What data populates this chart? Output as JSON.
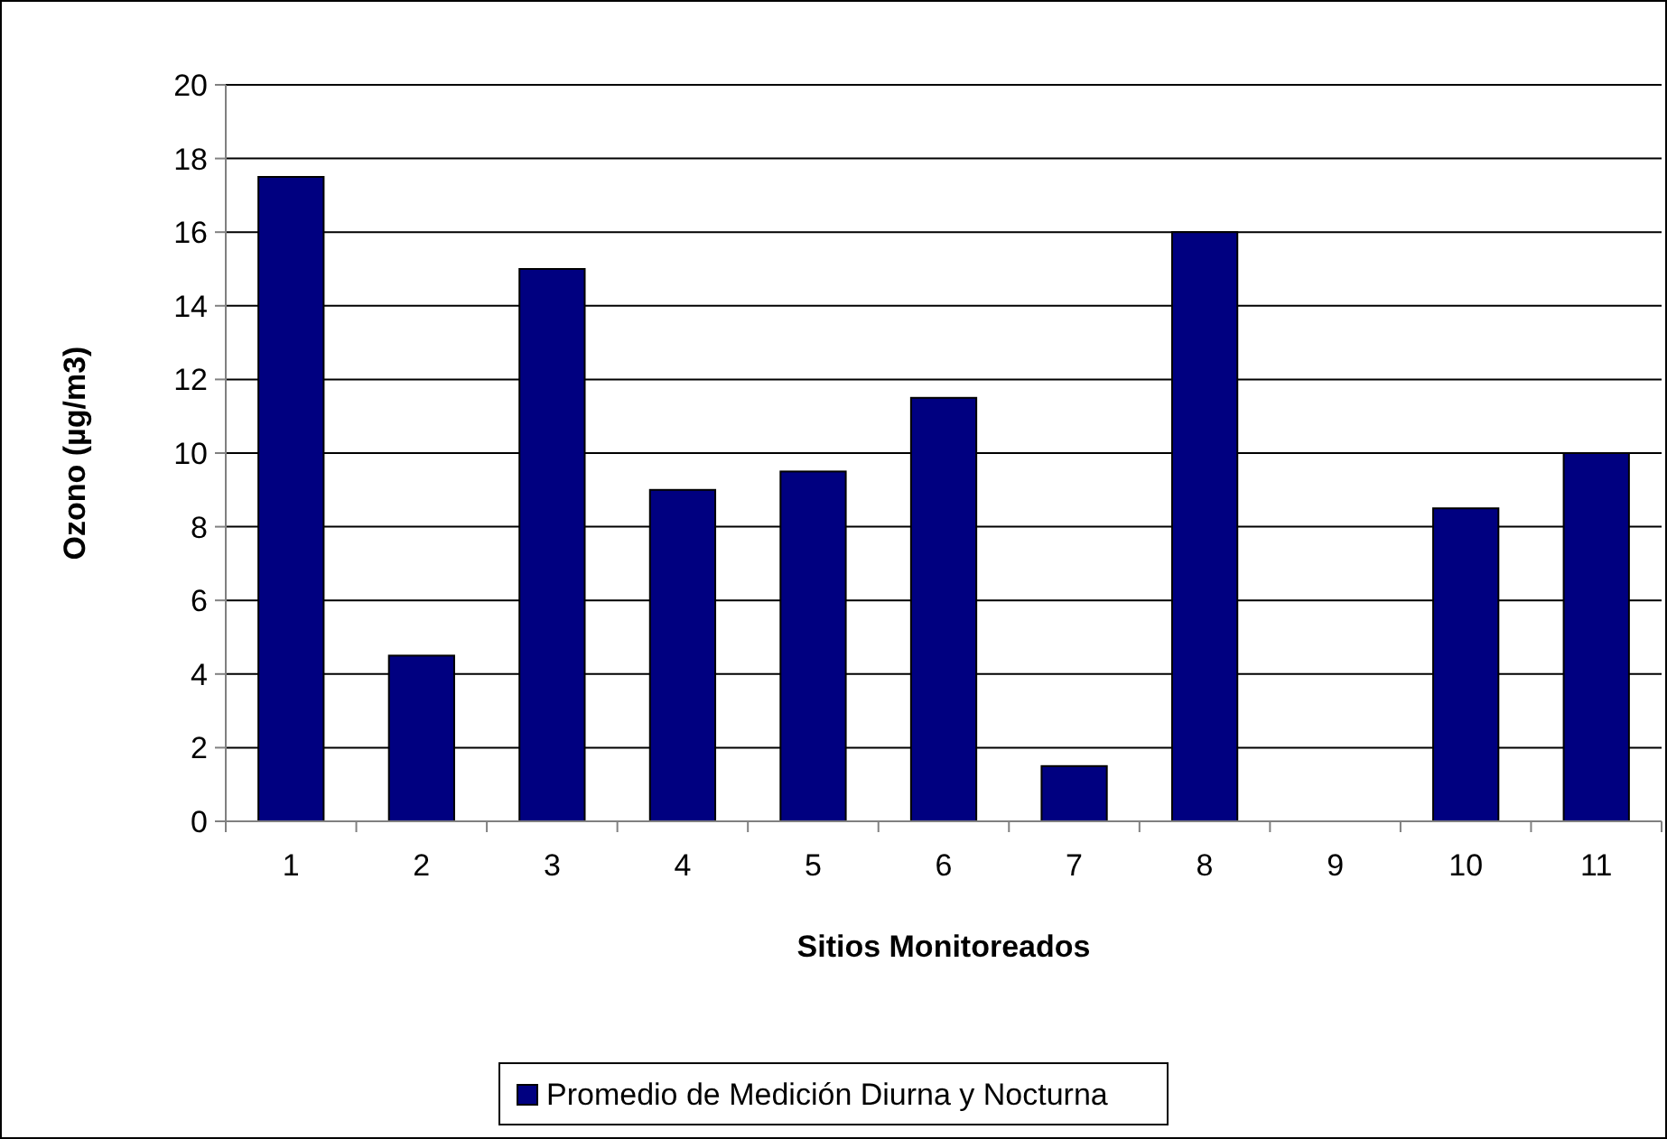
{
  "chart_data": {
    "type": "bar",
    "xlabel": "Sitios Monitoreados",
    "ylabel": "Ozono (µg/m3)",
    "categories": [
      "1",
      "2",
      "3",
      "4",
      "5",
      "6",
      "7",
      "8",
      "9",
      "10",
      "11"
    ],
    "series": [
      {
        "name": "Promedio de Medición Diurna y Nocturna",
        "color": "#000080",
        "values": [
          17.5,
          4.5,
          15,
          9,
          9.5,
          11.5,
          1.5,
          16,
          null,
          8.5,
          10
        ]
      }
    ],
    "ylim": [
      0,
      20
    ],
    "yticks": [
      0,
      2,
      4,
      6,
      8,
      10,
      12,
      14,
      16,
      18,
      20
    ],
    "grid": "y",
    "legend": "bottom"
  }
}
